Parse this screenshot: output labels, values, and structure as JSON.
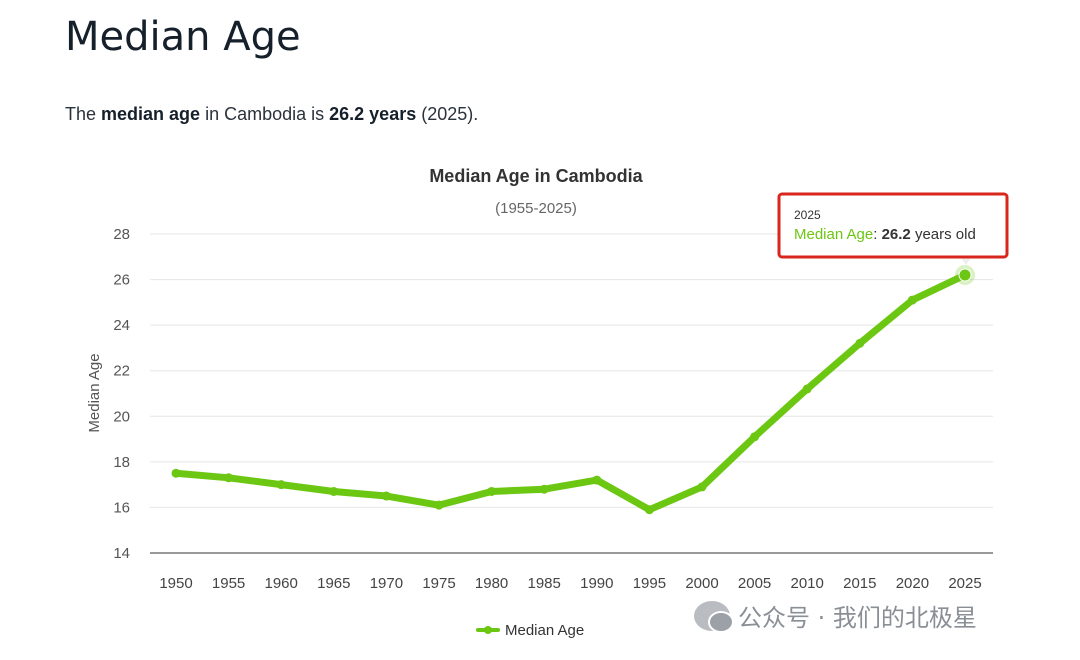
{
  "page": {
    "title": "Median Age",
    "summary": {
      "t1": "The ",
      "b1": "median age",
      "t2": " in Cambodia is ",
      "b2": "26.2 years",
      "t3": " (2025)."
    }
  },
  "watermark": "公众号 · 我们的北极星",
  "chart_data": {
    "type": "line",
    "title": "Median Age in Cambodia",
    "subtitle": "(1955-2025)",
    "xlabel": "",
    "ylabel": "Median Age",
    "x": [
      "1950",
      "1955",
      "1960",
      "1965",
      "1970",
      "1975",
      "1980",
      "1985",
      "1990",
      "1995",
      "2000",
      "2005",
      "2010",
      "2015",
      "2020",
      "2025"
    ],
    "ylim": [
      14,
      28
    ],
    "yticks": [
      14,
      16,
      18,
      20,
      22,
      24,
      26,
      28
    ],
    "grid": true,
    "legend_position": "bottom-center",
    "series": [
      {
        "name": "Median Age",
        "color": "#6cc712",
        "values": [
          17.5,
          17.3,
          17.0,
          16.7,
          16.5,
          16.1,
          16.7,
          16.8,
          17.2,
          15.9,
          16.9,
          19.1,
          21.2,
          23.2,
          25.1,
          26.2
        ]
      }
    ],
    "tooltip": {
      "x": "2025",
      "series_label": "Median Age",
      "value": "26.2",
      "suffix": " years old"
    }
  }
}
